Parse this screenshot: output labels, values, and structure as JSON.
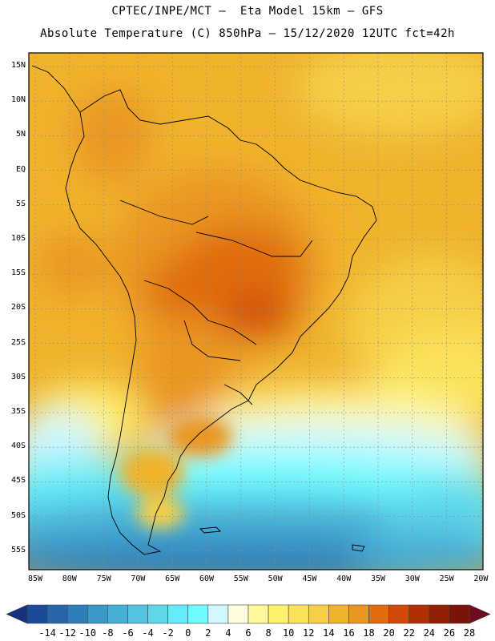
{
  "header": {
    "line1": "CPTEC/INPE/MCT –  Eta Model 15km – GFS",
    "line2": "Absolute Temperature (C) 850hPa – 15/12/2020 12UTC fct=42h"
  },
  "map": {
    "lat_labels": [
      "15N",
      "10N",
      "5N",
      "EQ",
      "5S",
      "10S",
      "15S",
      "20S",
      "25S",
      "30S",
      "35S",
      "40S",
      "45S",
      "50S",
      "55S"
    ],
    "lon_labels": [
      "85W",
      "80W",
      "75W",
      "70W",
      "65W",
      "60W",
      "55W",
      "50W",
      "45W",
      "40W",
      "35W",
      "30W",
      "25W",
      "20W"
    ],
    "lat_values": [
      15,
      10,
      5,
      0,
      -5,
      -10,
      -15,
      -20,
      -25,
      -30,
      -35,
      -40,
      -45,
      -50,
      -55
    ],
    "lon_values": [
      -85,
      -80,
      -75,
      -70,
      -65,
      -60,
      -55,
      -50,
      -45,
      -40,
      -35,
      -30,
      -25,
      -20
    ]
  },
  "colorbar": {
    "labels": [
      "-14",
      "-12",
      "-10",
      "-8",
      "-6",
      "-4",
      "-2",
      "0",
      "2",
      "4",
      "6",
      "8",
      "10",
      "12",
      "14",
      "16",
      "18",
      "20",
      "22",
      "24",
      "26",
      "28"
    ],
    "colors": [
      "#16317e",
      "#1c4a96",
      "#2766a8",
      "#2f7eba",
      "#3a97c8",
      "#47aed6",
      "#53c3e0",
      "#5ed7ea",
      "#66ecf8",
      "#6ffbff",
      "#d2f8ff",
      "#fffbdc",
      "#fff79a",
      "#fff170",
      "#fbe25a",
      "#f5cf46",
      "#f0b32c",
      "#ea9722",
      "#e06c10",
      "#cf4a08",
      "#b03006",
      "#922006",
      "#7a1408",
      "#6e0b1c"
    ]
  }
}
